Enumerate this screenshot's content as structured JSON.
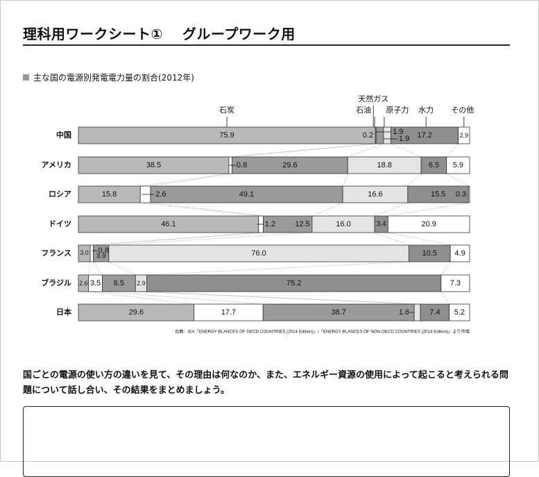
{
  "page": {
    "title": "理科用ワークシート①　 グループワーク用",
    "chart_heading": "主な国の電源別発電電力量の割合(2012年)",
    "source_note": "出典：IEA「ENERGY BLANCES OF OECD COUNTRIES (2014 Edition)」/「ENERGY BLANCES OF NON OECD COUNTRIES (2014 Edition)」より作成",
    "question": "国ごとの電源の使い方の違いを見て、その理由は何なのか、また、エネルギー資源の使用によって起こると考えられる問題について話し合い、その結果をまとめましょう。"
  },
  "colors": {
    "coal": "#b9b9b9",
    "oil": "#ffffff",
    "gas": "#9a9a9a",
    "nuclear": "#e4e4e4",
    "hydro": "#8f8f8f",
    "other": "#ffffff",
    "border": "#333333"
  },
  "chart_data": {
    "type": "bar",
    "orientation": "horizontal-stacked-100",
    "title": "主な国の電源別発電電力量の割合(2012年)",
    "series_names": [
      "石炭",
      "石油",
      "天然ガス",
      "原子力",
      "水力",
      "その他"
    ],
    "categories": [
      "中国",
      "アメリカ",
      "ロシア",
      "ドイツ",
      "フランス",
      "ブラジル",
      "日本"
    ],
    "rows": [
      {
        "country": "中国",
        "values": [
          75.9,
          0.2,
          1.9,
          1.9,
          17.2,
          2.9
        ],
        "labels": [
          "75.9",
          "0.2",
          "1.9",
          "1.9",
          "17.2",
          "2.9"
        ]
      },
      {
        "country": "アメリカ",
        "values": [
          38.5,
          0.8,
          29.6,
          18.8,
          6.5,
          5.9
        ],
        "labels": [
          "38.5",
          "0.8",
          "29.6",
          "18.8",
          "6.5",
          "5.9"
        ]
      },
      {
        "country": "ロシア",
        "values": [
          15.8,
          2.6,
          49.1,
          16.6,
          15.5,
          0.3
        ],
        "labels": [
          "15.8",
          "2.6",
          "49.1",
          "16.6",
          "15.5",
          "0.3"
        ]
      },
      {
        "country": "ドイツ",
        "values": [
          46.1,
          1.2,
          12.5,
          16.0,
          3.4,
          20.9
        ],
        "labels": [
          "46.1",
          "1.2",
          "12.5",
          "16.0",
          "3.4",
          "20.9"
        ]
      },
      {
        "country": "フランス",
        "values": [
          3.0,
          0.8,
          3.9,
          76.0,
          10.5,
          4.9
        ],
        "labels": [
          "3.0",
          "0.8",
          "3.9",
          "76.0",
          "10.5",
          "4.9"
        ]
      },
      {
        "country": "ブラジル",
        "values": [
          2.6,
          3.5,
          8.5,
          2.9,
          75.2,
          7.3
        ],
        "labels": [
          "2.6",
          "3.5",
          "8.5",
          "2.9",
          "75.2",
          "7.3"
        ]
      },
      {
        "country": "日本",
        "values": [
          29.6,
          17.7,
          38.7,
          1.6,
          7.4,
          5.2
        ],
        "labels": [
          "29.6",
          "17.7",
          "38.7",
          "1.6",
          "7.4",
          "5.2"
        ]
      }
    ],
    "unit": "%",
    "grid": false,
    "legend": "top"
  }
}
